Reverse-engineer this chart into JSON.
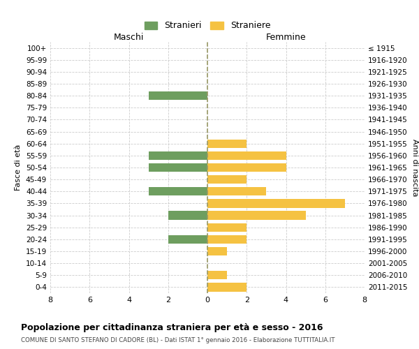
{
  "age_groups": [
    "100+",
    "95-99",
    "90-94",
    "85-89",
    "80-84",
    "75-79",
    "70-74",
    "65-69",
    "60-64",
    "55-59",
    "50-54",
    "45-49",
    "40-44",
    "35-39",
    "30-34",
    "25-29",
    "20-24",
    "15-19",
    "10-14",
    "5-9",
    "0-4"
  ],
  "birth_years": [
    "≤ 1915",
    "1916-1920",
    "1921-1925",
    "1926-1930",
    "1931-1935",
    "1936-1940",
    "1941-1945",
    "1946-1950",
    "1951-1955",
    "1956-1960",
    "1961-1965",
    "1966-1970",
    "1971-1975",
    "1976-1980",
    "1981-1985",
    "1986-1990",
    "1991-1995",
    "1996-2000",
    "2001-2005",
    "2006-2010",
    "2011-2015"
  ],
  "maschi": [
    0,
    0,
    0,
    0,
    3,
    0,
    0,
    0,
    0,
    3,
    3,
    0,
    3,
    0,
    2,
    0,
    2,
    0,
    0,
    0,
    0
  ],
  "femmine": [
    0,
    0,
    0,
    0,
    0,
    0,
    0,
    0,
    2,
    4,
    4,
    2,
    3,
    7,
    5,
    2,
    2,
    1,
    0,
    1,
    2
  ],
  "maschi_color": "#6e9e5f",
  "femmine_color": "#f5c242",
  "background_color": "#ffffff",
  "grid_color": "#cccccc",
  "title": "Popolazione per cittadinanza straniera per età e sesso - 2016",
  "subtitle": "COMUNE DI SANTO STEFANO DI CADORE (BL) - Dati ISTAT 1° gennaio 2016 - Elaborazione TUTTITALIA.IT",
  "ylabel_left": "Fasce di età",
  "ylabel_right": "Anni di nascita",
  "xlabel_left": "Maschi",
  "xlabel_right": "Femmine",
  "legend_maschi": "Stranieri",
  "legend_femmine": "Straniere",
  "xlim": 8
}
